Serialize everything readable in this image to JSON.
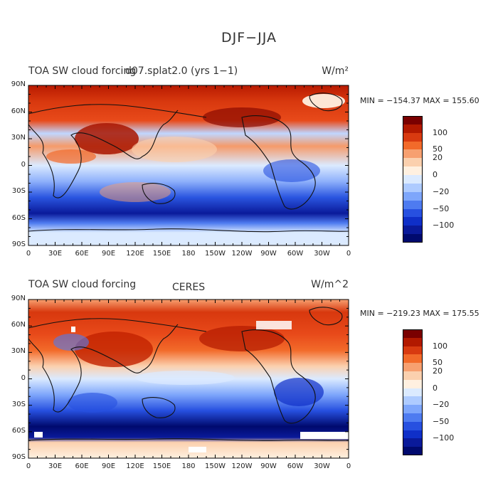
{
  "figure": {
    "title": "DJF−JJA"
  },
  "panels": [
    {
      "title_left": "TOA SW cloud forcing",
      "title_center": "d07.splat2.0 (yrs 1−1)",
      "units": "W/m²",
      "stats": "MIN = −154.37  MAX = 155.60"
    },
    {
      "title_left": "TOA SW cloud forcing",
      "title_center": "CERES",
      "units": "W/m^2",
      "stats": "MIN = −219.23  MAX = 175.55"
    }
  ],
  "axes": {
    "lat_ticks": [
      "90N",
      "60N",
      "30N",
      "0",
      "30S",
      "60S",
      "90S"
    ],
    "lon_ticks": [
      "0",
      "30E",
      "60E",
      "90E",
      "120E",
      "150E",
      "180",
      "150W",
      "120W",
      "90W",
      "60W",
      "30W",
      "0"
    ]
  },
  "colorbar": {
    "labels": [
      "100",
      "50",
      "20",
      "0",
      "−20",
      "−50",
      "−100"
    ],
    "colors": [
      "#7a0000",
      "#b21900",
      "#d83a10",
      "#f26a2a",
      "#f7a070",
      "#fbd0ae",
      "#fff0e0",
      "#dbeaff",
      "#aecbff",
      "#7ea6fb",
      "#4e7bf0",
      "#2750e0",
      "#0f2fc8",
      "#0a1a9a",
      "#000a6e"
    ]
  }
}
